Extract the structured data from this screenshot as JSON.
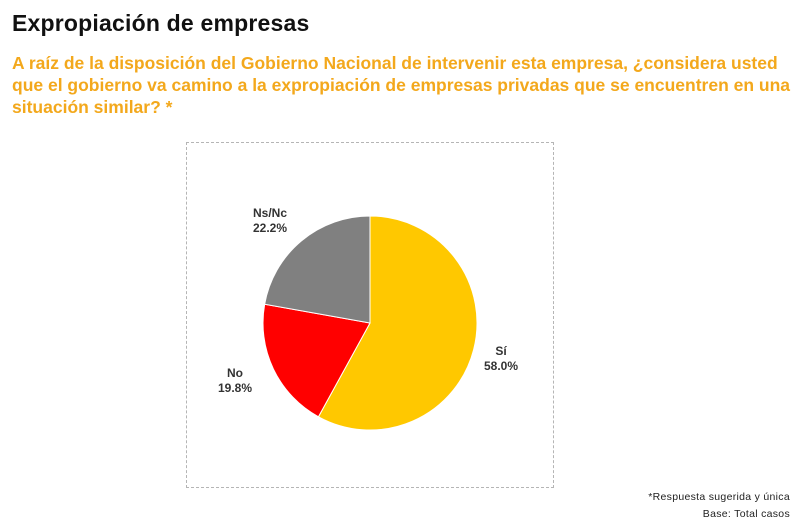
{
  "page": {
    "title": "Expropiación de empresas",
    "question": "A raíz de la disposición del Gobierno Nacional de intervenir esta empresa, ¿considera usted que el gobierno va camino a la expropiación de empresas privadas que se encuentren en una situación similar? *",
    "footnote_1": "*Respuesta sugerida y única",
    "footnote_2": "Base: Total casos"
  },
  "colors": {
    "accent": "#f3a81c",
    "si": "#ffc800",
    "no": "#ff0000",
    "nsnc": "#808080"
  },
  "chart_data": {
    "type": "pie",
    "title": "",
    "start": "12 o'clock, clockwise",
    "slices": [
      {
        "label": "Sí",
        "value": 58.0,
        "display": "58.0%",
        "color": "#ffc800"
      },
      {
        "label": "No",
        "value": 19.8,
        "display": "19.8%",
        "color": "#ff0000"
      },
      {
        "label": "Ns/Nc",
        "value": 22.2,
        "display": "22.2%",
        "color": "#808080"
      }
    ]
  }
}
